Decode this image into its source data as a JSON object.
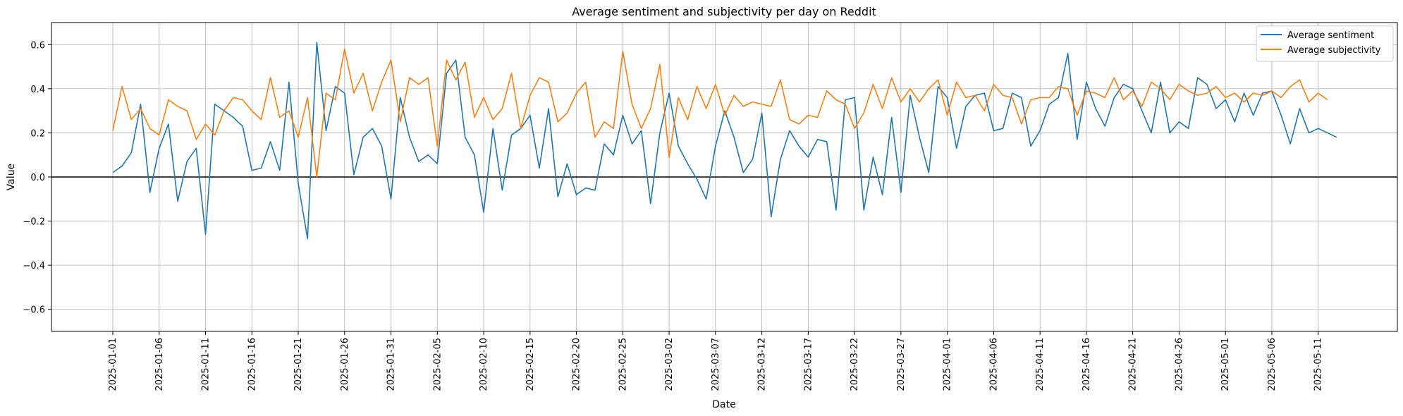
{
  "chart_data": {
    "type": "line",
    "title": "Average sentiment and subjectivity per day on Reddit",
    "xlabel": "Date",
    "ylabel": "Value",
    "x_start": "2025-01-01",
    "x_tick_labels": [
      "2025-01-01",
      "2025-01-06",
      "2025-01-11",
      "2025-01-16",
      "2025-01-21",
      "2025-01-26",
      "2025-01-31",
      "2025-02-05",
      "2025-02-10",
      "2025-02-15",
      "2025-02-20",
      "2025-02-25",
      "2025-03-02",
      "2025-03-07",
      "2025-03-12",
      "2025-03-17",
      "2025-03-22",
      "2025-03-27",
      "2025-04-01",
      "2025-04-06",
      "2025-04-11",
      "2025-04-16",
      "2025-04-21",
      "2025-04-26",
      "2025-05-01",
      "2025-05-06",
      "2025-05-11"
    ],
    "y_ticks": [
      "0.6",
      "0.4",
      "0.2",
      "0.0",
      "−0.2",
      "−0.4",
      "−0.6"
    ],
    "ylim": [
      -0.7,
      0.7
    ],
    "grid": true,
    "legend_position": "top-right",
    "zero_line": true,
    "series": [
      {
        "name": "Average sentiment",
        "color": "#1f77b4",
        "values": [
          0.02,
          0.05,
          0.11,
          0.33,
          -0.07,
          0.13,
          0.24,
          -0.11,
          0.07,
          0.13,
          -0.26,
          0.33,
          0.3,
          0.27,
          0.23,
          0.03,
          0.04,
          0.16,
          0.03,
          0.43,
          -0.03,
          -0.28,
          0.61,
          0.21,
          0.41,
          0.38,
          0.01,
          0.18,
          0.22,
          0.14,
          -0.1,
          0.36,
          0.18,
          0.07,
          0.1,
          0.06,
          0.47,
          0.53,
          0.18,
          0.1,
          -0.16,
          0.22,
          -0.06,
          0.19,
          0.22,
          0.28,
          0.04,
          0.31,
          -0.09,
          0.06,
          -0.08,
          -0.05,
          -0.06,
          0.15,
          0.1,
          0.28,
          0.15,
          0.21,
          -0.12,
          0.2,
          0.38,
          0.14,
          0.06,
          -0.01,
          -0.1,
          0.14,
          0.3,
          0.18,
          0.02,
          0.08,
          0.29,
          -0.18,
          0.08,
          0.21,
          0.14,
          0.09,
          0.17,
          0.16,
          -0.15,
          0.35,
          0.36,
          -0.15,
          0.09,
          -0.08,
          0.27,
          -0.07,
          0.37,
          0.18,
          0.02,
          0.41,
          0.36,
          0.13,
          0.32,
          0.37,
          0.38,
          0.21,
          0.22,
          0.38,
          0.36,
          0.14,
          0.21,
          0.33,
          0.36,
          0.56,
          0.17,
          0.43,
          0.31,
          0.23,
          0.36,
          0.42,
          0.4,
          0.3,
          0.2,
          0.43,
          0.2,
          0.25,
          0.22,
          0.45,
          0.42,
          0.31,
          0.35,
          0.25,
          0.38,
          0.28,
          0.38,
          0.39,
          0.28,
          0.15,
          0.31,
          0.2,
          0.22,
          0.2,
          0.18
        ]
      },
      {
        "name": "Average subjectivity",
        "color": "#ff7f0e",
        "values": [
          0.21,
          0.41,
          0.26,
          0.31,
          0.22,
          0.19,
          0.35,
          0.32,
          0.3,
          0.17,
          0.24,
          0.19,
          0.3,
          0.36,
          0.35,
          0.3,
          0.26,
          0.45,
          0.27,
          0.3,
          0.18,
          0.36,
          0.0,
          0.38,
          0.35,
          0.58,
          0.38,
          0.47,
          0.3,
          0.43,
          0.53,
          0.25,
          0.45,
          0.42,
          0.45,
          0.14,
          0.53,
          0.44,
          0.52,
          0.27,
          0.36,
          0.26,
          0.31,
          0.47,
          0.22,
          0.37,
          0.45,
          0.43,
          0.25,
          0.29,
          0.38,
          0.43,
          0.18,
          0.25,
          0.22,
          0.57,
          0.33,
          0.22,
          0.31,
          0.51,
          0.09,
          0.36,
          0.26,
          0.41,
          0.31,
          0.42,
          0.28,
          0.37,
          0.32,
          0.34,
          0.33,
          0.32,
          0.44,
          0.26,
          0.24,
          0.28,
          0.27,
          0.39,
          0.35,
          0.33,
          0.22,
          0.29,
          0.42,
          0.31,
          0.45,
          0.34,
          0.4,
          0.34,
          0.4,
          0.44,
          0.28,
          0.43,
          0.36,
          0.37,
          0.3,
          0.42,
          0.37,
          0.36,
          0.24,
          0.35,
          0.36,
          0.36,
          0.41,
          0.4,
          0.28,
          0.39,
          0.38,
          0.36,
          0.45,
          0.35,
          0.39,
          0.32,
          0.43,
          0.4,
          0.35,
          0.42,
          0.39,
          0.37,
          0.38,
          0.41,
          0.36,
          0.38,
          0.34,
          0.38,
          0.37,
          0.39,
          0.36,
          0.41,
          0.44,
          0.34,
          0.38,
          0.35
        ]
      }
    ]
  }
}
